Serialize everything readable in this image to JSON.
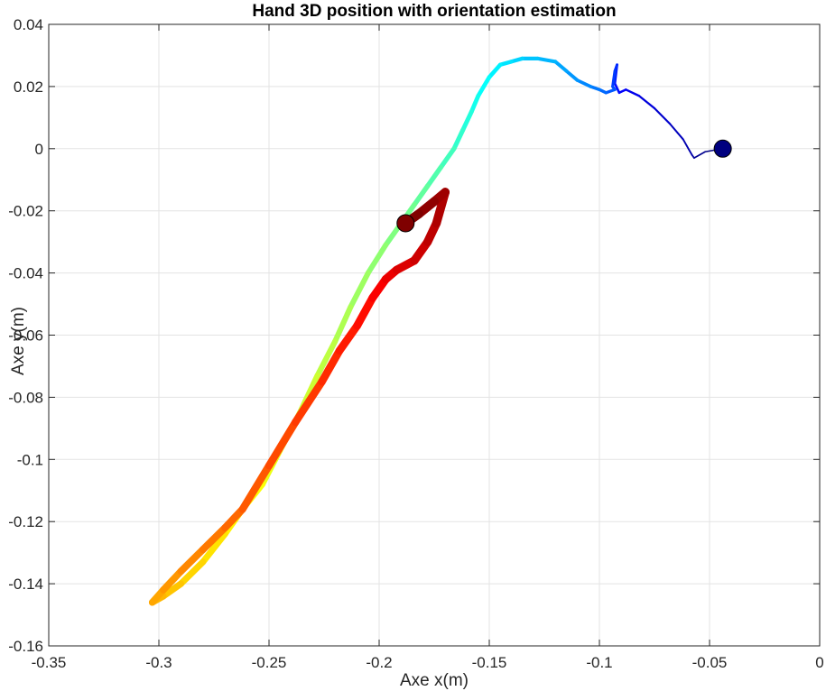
{
  "chart_data": {
    "type": "line",
    "title": "Hand 3D position with orientation estimation",
    "xlabel": "Axe x(m)",
    "ylabel": "Axe y(m)",
    "xlim": [
      -0.35,
      0
    ],
    "ylim": [
      -0.16,
      0.04
    ],
    "grid": true,
    "colormap": "jet",
    "x_ticks": [
      {
        "value": -0.35,
        "label": "-0.35"
      },
      {
        "value": -0.3,
        "label": "-0.3"
      },
      {
        "value": -0.25,
        "label": "-0.25"
      },
      {
        "value": -0.2,
        "label": "-0.2"
      },
      {
        "value": -0.15,
        "label": "-0.15"
      },
      {
        "value": -0.1,
        "label": "-0.1"
      },
      {
        "value": -0.05,
        "label": "-0.05"
      },
      {
        "value": 0,
        "label": "0"
      }
    ],
    "y_ticks": [
      {
        "value": 0.04,
        "label": "0.04"
      },
      {
        "value": 0.02,
        "label": "0.02"
      },
      {
        "value": 0,
        "label": "0"
      },
      {
        "value": -0.02,
        "label": "-0.02"
      },
      {
        "value": -0.04,
        "label": "-0.04"
      },
      {
        "value": -0.06,
        "label": "-0.06"
      },
      {
        "value": -0.08,
        "label": "-0.08"
      },
      {
        "value": -0.1,
        "label": "-0.1"
      },
      {
        "value": -0.12,
        "label": "-0.12"
      },
      {
        "value": -0.14,
        "label": "-0.14"
      },
      {
        "value": -0.16,
        "label": "-0.16"
      }
    ],
    "trajectory": {
      "x": [
        -0.044,
        -0.052,
        -0.057,
        -0.058,
        -0.062,
        -0.068,
        -0.075,
        -0.082,
        -0.088,
        -0.091,
        -0.093,
        -0.092,
        -0.093,
        -0.094,
        -0.093,
        -0.097,
        -0.1,
        -0.104,
        -0.11,
        -0.115,
        -0.12,
        -0.128,
        -0.135,
        -0.14,
        -0.145,
        -0.15,
        -0.155,
        -0.158,
        -0.162,
        -0.166,
        -0.172,
        -0.178,
        -0.184,
        -0.19,
        -0.197,
        -0.205,
        -0.213,
        -0.22,
        -0.228,
        -0.236,
        -0.245,
        -0.253,
        -0.262,
        -0.27,
        -0.28,
        -0.29,
        -0.298,
        -0.303,
        -0.298,
        -0.29,
        -0.28,
        -0.27,
        -0.262,
        -0.25,
        -0.238,
        -0.226,
        -0.218,
        -0.21,
        -0.203,
        -0.197,
        -0.192,
        -0.184,
        -0.178,
        -0.174,
        -0.17,
        -0.175,
        -0.182,
        -0.188
      ],
      "y": [
        0.0,
        -0.001,
        -0.003,
        -0.002,
        0.003,
        0.008,
        0.013,
        0.017,
        0.019,
        0.018,
        0.021,
        0.027,
        0.025,
        0.02,
        0.019,
        0.018,
        0.019,
        0.02,
        0.022,
        0.025,
        0.028,
        0.029,
        0.029,
        0.028,
        0.027,
        0.023,
        0.017,
        0.012,
        0.006,
        0.0,
        -0.006,
        -0.012,
        -0.018,
        -0.024,
        -0.031,
        -0.04,
        -0.051,
        -0.062,
        -0.073,
        -0.085,
        -0.097,
        -0.108,
        -0.116,
        -0.124,
        -0.133,
        -0.14,
        -0.144,
        -0.146,
        -0.142,
        -0.136,
        -0.129,
        -0.122,
        -0.116,
        -0.102,
        -0.088,
        -0.075,
        -0.065,
        -0.057,
        -0.048,
        -0.042,
        -0.039,
        -0.036,
        -0.03,
        -0.024,
        -0.014,
        -0.017,
        -0.021,
        -0.024
      ]
    },
    "start_marker": {
      "x": -0.044,
      "y": 0.0,
      "color": "#00007f"
    },
    "end_marker": {
      "x": -0.188,
      "y": -0.024,
      "color": "#7f0000"
    }
  }
}
